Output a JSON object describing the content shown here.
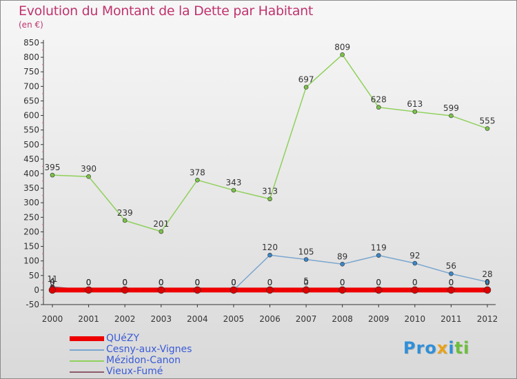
{
  "header": {
    "title": "Evolution du Montant de la Dette par Habitant",
    "unit": "(en €)"
  },
  "logo": {
    "text": "Proxiti",
    "brand": "Proxiti"
  },
  "colors": {
    "title": "#c0336e",
    "legend_text": "#3a5bd6",
    "axis": "#333333",
    "grid_dash": "#e06aa0"
  },
  "chart_data": {
    "type": "line",
    "title": "Evolution du Montant de la Dette par Habitant",
    "ylabel": "(en €)",
    "xlabel": "",
    "x": [
      "2000",
      "2001",
      "2002",
      "2003",
      "2004",
      "2005",
      "2006",
      "2007",
      "2008",
      "2009",
      "2010",
      "2011",
      "2012"
    ],
    "ylim": [
      -50,
      850
    ],
    "yticks": [
      -50,
      0,
      50,
      100,
      150,
      200,
      250,
      300,
      350,
      400,
      450,
      500,
      550,
      600,
      650,
      700,
      750,
      800,
      850
    ],
    "legend_position": "bottom-left",
    "series": [
      {
        "name": "Mézidon-Canon",
        "color": "#8fd05a",
        "marker_color": "#7cc24a",
        "values": [
          395,
          390,
          239,
          201,
          378,
          343,
          313,
          697,
          809,
          628,
          613,
          599,
          555
        ],
        "labels": [
          "395",
          "390",
          "239",
          "201",
          "378",
          "343",
          "313",
          "697",
          "809",
          "628",
          "613",
          "599",
          "555"
        ]
      },
      {
        "name": "Cesny-aux-Vignes",
        "color": "#7aa6cf",
        "marker_color": "#3b86c8",
        "values": [
          4,
          0,
          0,
          0,
          0,
          0,
          120,
          105,
          89,
          119,
          92,
          56,
          28
        ],
        "labels": [
          "4",
          "0",
          "0",
          "0",
          "0",
          "0",
          "120",
          "105",
          "89",
          "119",
          "92",
          "56",
          "28"
        ]
      },
      {
        "name": "Vieux-Fumé",
        "color": "#8b5a6a",
        "marker_color": "#6a2b3b",
        "values": [
          11,
          0,
          0,
          0,
          0,
          0,
          0,
          5,
          0,
          0,
          0,
          0,
          0
        ],
        "labels": [
          "11",
          "0",
          "0",
          "0",
          "0",
          "0",
          "0",
          "5",
          "0",
          "0",
          "0",
          "0",
          "0"
        ]
      },
      {
        "name": "QUéZY",
        "color": "#ee0000",
        "marker_color": "#dd0000",
        "values": [
          0,
          0,
          0,
          0,
          0,
          0,
          0,
          0,
          0,
          0,
          0,
          0,
          0
        ],
        "labels": [
          "0",
          "0",
          "0",
          "0",
          "0",
          "0",
          "0",
          "0",
          "0",
          "0",
          "0",
          "0",
          "0"
        ]
      }
    ],
    "legend_order": [
      "QUéZY",
      "Cesny-aux-Vignes",
      "Mézidon-Canon",
      "Vieux-Fumé"
    ]
  }
}
